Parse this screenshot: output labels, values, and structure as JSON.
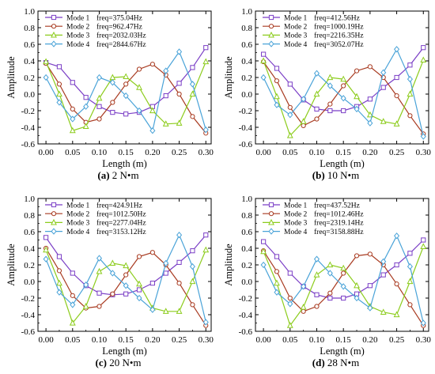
{
  "colors": {
    "Mode 1": "#7b3fc6",
    "Mode 2": "#a83a20",
    "Mode 3": "#8ccc1c",
    "Mode 4": "#4aa3d8"
  },
  "markers": {
    "Mode 1": "square",
    "Mode 2": "circle",
    "Mode 3": "triangle",
    "Mode 4": "diamond"
  },
  "chart_data": [
    {
      "type": "line",
      "caption": {
        "letter": "(a)",
        "text": "2 N•m"
      },
      "xlabel": "Length (m)",
      "ylabel": "Amplitude",
      "xlim": [
        -0.015,
        0.31
      ],
      "ylim": [
        -0.6,
        1.0
      ],
      "xticks": [
        "0.00",
        "0.05",
        "0.10",
        "0.15",
        "0.20",
        "0.25",
        "0.30"
      ],
      "yticks": [
        "-0.6",
        "-0.4",
        "-0.2",
        "0.0",
        "0.2",
        "0.4",
        "0.6",
        "0.8",
        "1.0"
      ],
      "legend_position": "top-left",
      "x": [
        0.0,
        0.025,
        0.05,
        0.075,
        0.1,
        0.125,
        0.15,
        0.175,
        0.2,
        0.225,
        0.25,
        0.275,
        0.3
      ],
      "series": [
        {
          "name": "Mode 1",
          "freq": "freq=375.04Hz",
          "values": [
            0.38,
            0.33,
            0.14,
            -0.04,
            -0.15,
            -0.22,
            -0.24,
            -0.22,
            -0.15,
            -0.02,
            0.13,
            0.32,
            0.56
          ]
        },
        {
          "name": "Mode 2",
          "freq": "freq=962.47Hz",
          "values": [
            0.37,
            0.12,
            -0.18,
            -0.34,
            -0.3,
            -0.1,
            0.12,
            0.3,
            0.36,
            0.23,
            0.0,
            -0.27,
            -0.47
          ]
        },
        {
          "name": "Mode 3",
          "freq": "freq=2032.03Hz",
          "values": [
            0.39,
            0.0,
            -0.44,
            -0.39,
            -0.05,
            0.2,
            0.21,
            0.08,
            -0.2,
            -0.36,
            -0.35,
            0.0,
            0.39
          ]
        },
        {
          "name": "Mode 4",
          "freq": "freq=2844.67Hz",
          "values": [
            0.2,
            -0.1,
            -0.3,
            -0.15,
            0.2,
            0.14,
            -0.02,
            -0.2,
            -0.44,
            0.28,
            0.51,
            0.12,
            -0.43
          ]
        }
      ]
    },
    {
      "type": "line",
      "caption": {
        "letter": "(b)",
        "text": "10 N•m"
      },
      "xlabel": "Length (m)",
      "ylabel": "Amplitude",
      "xlim": [
        -0.015,
        0.31
      ],
      "ylim": [
        -0.6,
        1.0
      ],
      "xticks": [
        "0.00",
        "0.05",
        "0.10",
        "0.15",
        "0.20",
        "0.25",
        "0.30"
      ],
      "yticks": [
        "-0.6",
        "-0.4",
        "-0.2",
        "0.0",
        "0.2",
        "0.4",
        "0.6",
        "0.8",
        "1.0"
      ],
      "legend_position": "top-left",
      "x": [
        0.0,
        0.025,
        0.05,
        0.075,
        0.1,
        0.125,
        0.15,
        0.175,
        0.2,
        0.225,
        0.25,
        0.275,
        0.3
      ],
      "series": [
        {
          "name": "Mode 1",
          "freq": "freq=412.56Hz",
          "values": [
            0.48,
            0.31,
            0.12,
            -0.07,
            -0.18,
            -0.2,
            -0.2,
            -0.15,
            -0.06,
            0.08,
            0.2,
            0.35,
            0.56
          ]
        },
        {
          "name": "Mode 2",
          "freq": "freq=1000.19Hz",
          "values": [
            0.39,
            0.16,
            -0.16,
            -0.38,
            -0.3,
            -0.12,
            0.1,
            0.28,
            0.33,
            0.2,
            -0.02,
            -0.26,
            -0.48
          ]
        },
        {
          "name": "Mode 3",
          "freq": "freq=2216.35Hz",
          "values": [
            0.4,
            -0.03,
            -0.5,
            -0.33,
            0.0,
            0.2,
            0.18,
            -0.03,
            -0.25,
            -0.33,
            -0.36,
            0.0,
            0.41
          ]
        },
        {
          "name": "Mode 4",
          "freq": "freq=3052.07Hz",
          "values": [
            0.2,
            -0.13,
            -0.25,
            -0.06,
            0.25,
            0.1,
            -0.05,
            -0.18,
            -0.35,
            0.26,
            0.54,
            0.18,
            -0.51
          ]
        }
      ]
    },
    {
      "type": "line",
      "caption": {
        "letter": "(c)",
        "text": "20 N•m"
      },
      "xlabel": "Length (m)",
      "ylabel": "Amplitude",
      "xlim": [
        -0.015,
        0.31
      ],
      "ylim": [
        -0.6,
        1.0
      ],
      "xticks": [
        "0.00",
        "0.05",
        "0.10",
        "0.15",
        "0.20",
        "0.25",
        "0.30"
      ],
      "yticks": [
        "-0.6",
        "-0.4",
        "-0.2",
        "0.0",
        "0.2",
        "0.4",
        "0.6",
        "0.8",
        "1.0"
      ],
      "legend_position": "top-left",
      "x": [
        0.0,
        0.025,
        0.05,
        0.075,
        0.1,
        0.125,
        0.15,
        0.175,
        0.2,
        0.225,
        0.25,
        0.275,
        0.3
      ],
      "series": [
        {
          "name": "Mode 1",
          "freq": "freq=424.91Hz",
          "values": [
            0.53,
            0.3,
            0.1,
            -0.05,
            -0.14,
            -0.16,
            -0.15,
            -0.1,
            -0.02,
            0.1,
            0.23,
            0.37,
            0.56
          ]
        },
        {
          "name": "Mode 2",
          "freq": "freq=1012.50Hz",
          "values": [
            0.4,
            0.13,
            -0.17,
            -0.32,
            -0.3,
            -0.15,
            0.08,
            0.3,
            0.35,
            0.2,
            -0.02,
            -0.28,
            -0.53
          ]
        },
        {
          "name": "Mode 3",
          "freq": "freq=2277.04Hz",
          "values": [
            0.38,
            -0.02,
            -0.5,
            -0.3,
            0.12,
            0.22,
            0.19,
            -0.03,
            -0.32,
            -0.36,
            -0.36,
            0.0,
            0.38
          ]
        },
        {
          "name": "Mode 4",
          "freq": "freq=3153.12Hz",
          "values": [
            0.27,
            -0.13,
            -0.28,
            -0.04,
            0.28,
            0.1,
            -0.05,
            -0.2,
            -0.34,
            0.22,
            0.56,
            0.18,
            -0.49
          ]
        }
      ]
    },
    {
      "type": "line",
      "caption": {
        "letter": "(d)",
        "text": "28 N•m"
      },
      "xlabel": "Length (m)",
      "ylabel": "Amplitude",
      "xlim": [
        -0.015,
        0.31
      ],
      "ylim": [
        -0.6,
        1.0
      ],
      "xticks": [
        "0.00",
        "0.05",
        "0.10",
        "0.15",
        "0.20",
        "0.25",
        "0.30"
      ],
      "yticks": [
        "-0.6",
        "-0.4",
        "-0.2",
        "0.0",
        "0.2",
        "0.4",
        "0.6",
        "0.8",
        "1.0"
      ],
      "legend_position": "top-left",
      "x": [
        0.0,
        0.025,
        0.05,
        0.075,
        0.1,
        0.125,
        0.15,
        0.175,
        0.2,
        0.225,
        0.25,
        0.275,
        0.3
      ],
      "series": [
        {
          "name": "Mode 1",
          "freq": "freq=437.52Hz",
          "values": [
            0.48,
            0.3,
            0.1,
            -0.06,
            -0.16,
            -0.2,
            -0.2,
            -0.15,
            -0.05,
            0.08,
            0.2,
            0.34,
            0.5
          ]
        },
        {
          "name": "Mode 2",
          "freq": "freq=1012.46Hz",
          "values": [
            0.37,
            0.12,
            -0.2,
            -0.36,
            -0.3,
            -0.14,
            0.1,
            0.31,
            0.33,
            0.2,
            -0.03,
            -0.28,
            -0.53
          ]
        },
        {
          "name": "Mode 3",
          "freq": "freq=2319.14Hz",
          "values": [
            0.36,
            -0.02,
            -0.53,
            -0.31,
            0.08,
            0.2,
            0.16,
            -0.05,
            -0.3,
            -0.37,
            -0.4,
            0.0,
            0.42
          ]
        },
        {
          "name": "Mode 4",
          "freq": "freq=3158.88Hz",
          "values": [
            0.2,
            -0.13,
            -0.27,
            -0.06,
            0.27,
            0.1,
            -0.06,
            -0.2,
            -0.32,
            0.24,
            0.55,
            0.18,
            -0.5
          ]
        }
      ]
    }
  ]
}
